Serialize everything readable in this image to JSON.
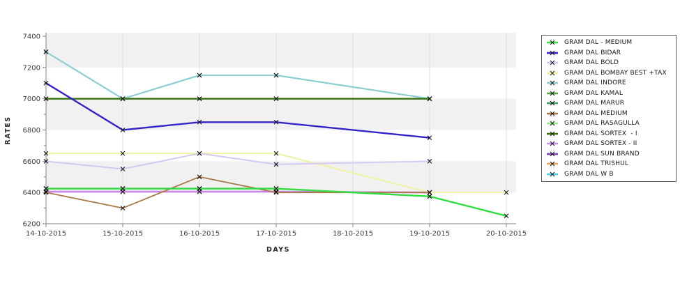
{
  "chart_data": {
    "type": "line",
    "title": "",
    "xlabel": "DAYS",
    "ylabel": "RATES",
    "legend_position": "right",
    "marker": "x",
    "grid": "alternating horizontal bands + vertical gridlines",
    "ylim": [
      6200,
      7400
    ],
    "y_ticks": [
      6200,
      6400,
      6600,
      6800,
      7000,
      7200,
      7400
    ],
    "y_minor_step": 100,
    "categories": [
      "14-10-2015",
      "15-10-2015",
      "16-10-2015",
      "17-10-2015",
      "18-10-2015",
      "19-10-2015",
      "20-10-2015"
    ],
    "series": [
      {
        "name": "GRAM DAL - MEDIUM",
        "color": "#33dd44",
        "values": [
          6425,
          6425,
          6425,
          6425,
          null,
          6375,
          6250
        ]
      },
      {
        "name": "GRAM DAL BIDAR",
        "color": "#3424c8",
        "values": [
          7100,
          6800,
          6850,
          6850,
          null,
          6750,
          null
        ]
      },
      {
        "name": "GRAM DAL BOLD",
        "color": "#d6c9f2",
        "values": [
          6600,
          6550,
          6650,
          6580,
          null,
          6600,
          null
        ]
      },
      {
        "name": "GRAM DAL BOMBAY BEST +TAX",
        "color": "#eef2a2",
        "values": [
          6650,
          6650,
          6650,
          6650,
          null,
          6400,
          6400
        ]
      },
      {
        "name": "GRAM DAL INDORE",
        "color": "#90cdd0",
        "values": [
          7300,
          7000,
          7150,
          7150,
          null,
          7000,
          null
        ]
      },
      {
        "name": "GRAM DAL KAMAL",
        "color": "#55aa44",
        "values": [
          6425,
          6425,
          6425,
          6425,
          null,
          6375,
          null
        ]
      },
      {
        "name": "GRAM DAL MARUR",
        "color": "#3f9e63",
        "values": [
          7000,
          7000,
          7000,
          7000,
          null,
          7000,
          null
        ]
      },
      {
        "name": "GRAM DAL MEDIUM",
        "color": "#aa7a48",
        "values": [
          6400,
          6300,
          6500,
          6400,
          null,
          6400,
          null
        ]
      },
      {
        "name": "GRAM DAL RASAGULLA",
        "color": "#9aee8d",
        "values": [
          6425,
          6425,
          6425,
          6425,
          null,
          6375,
          null
        ]
      },
      {
        "name": "GRAM DAL SORTEX  - I",
        "color": "#3a7410",
        "values": [
          7000,
          7000,
          7000,
          7000,
          null,
          7000,
          null
        ]
      },
      {
        "name": "GRAM DAL SORTEX - II",
        "color": "#c989e8",
        "values": [
          6405,
          6405,
          6405,
          6405,
          null,
          6400,
          null
        ]
      },
      {
        "name": "GRAM DAL SUN BRAND",
        "color": "#7a3fb0",
        "values": [
          6405,
          6405,
          6405,
          6405,
          null,
          6400,
          null
        ]
      },
      {
        "name": "GRAM DAL TRISHUL",
        "color": "#f0a95c",
        "values": [
          6405,
          6405,
          6405,
          6405,
          null,
          6400,
          null
        ]
      },
      {
        "name": "GRAM DAL W B",
        "color": "#4cd4e0",
        "values": [
          7300,
          7000,
          7150,
          7150,
          null,
          7000,
          null
        ]
      }
    ],
    "plot_order": [
      13,
      6,
      5,
      8,
      11,
      12,
      4,
      9,
      1,
      3,
      2,
      10,
      7,
      0
    ],
    "colors": {
      "band_gray": "#f1f1f1",
      "gridline": "#dcdcdc",
      "axis": "#828282",
      "marker": "#111111"
    }
  }
}
